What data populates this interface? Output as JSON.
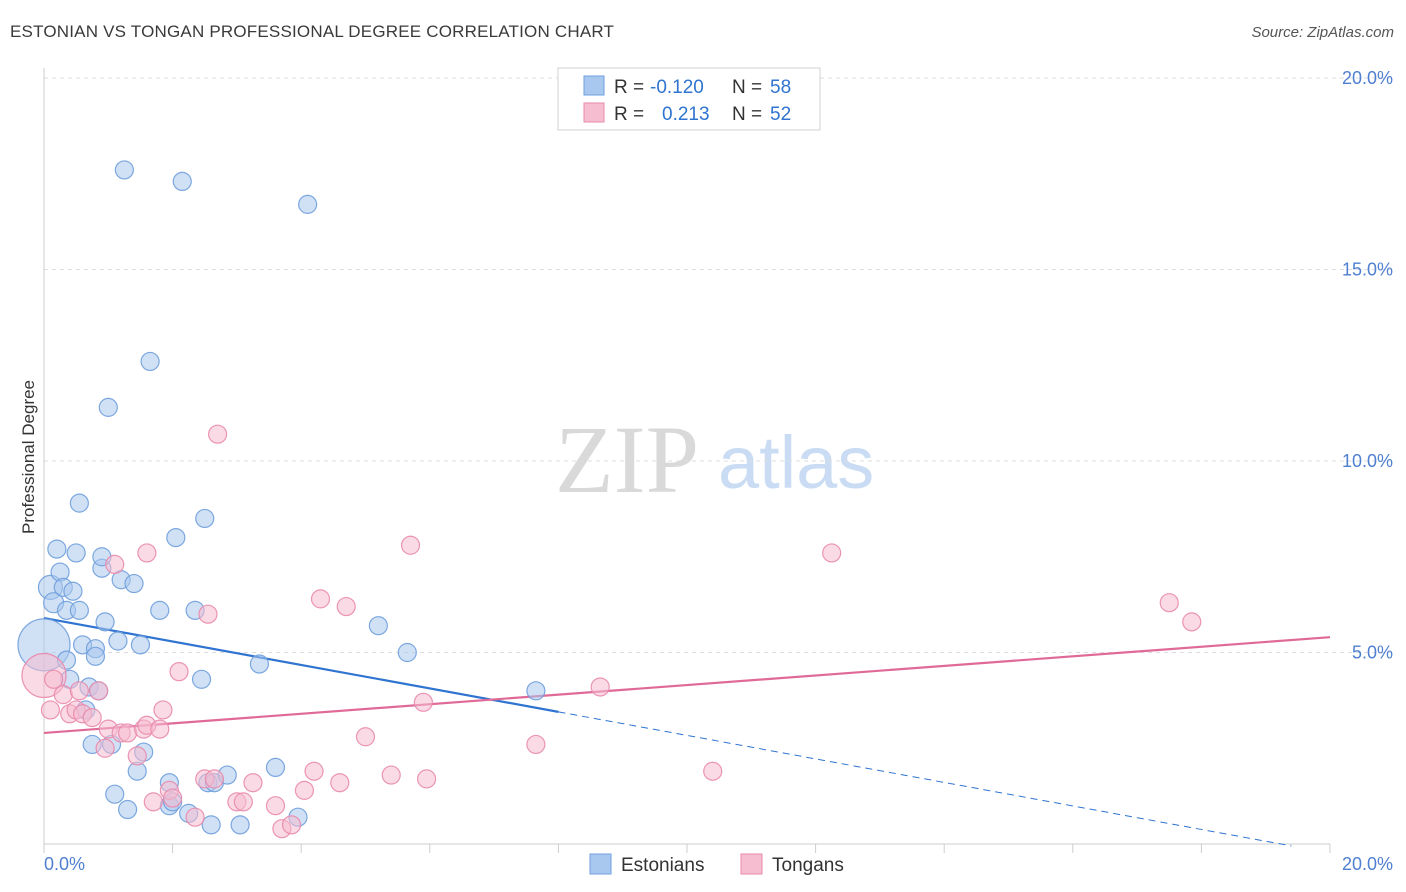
{
  "title": "ESTONIAN VS TONGAN PROFESSIONAL DEGREE CORRELATION CHART",
  "source": "Source: ZipAtlas.com",
  "watermark": {
    "zip": "ZIP",
    "atlas": "atlas"
  },
  "colors": {
    "estonian_fill": "#a9c8ef",
    "estonian_stroke": "#6f9fdc",
    "estonian_line": "#2f74d0",
    "tongan_fill": "#f6bccf",
    "tongan_stroke": "#e98aac",
    "tongan_line": "#e06a97",
    "tick": "#4f7fd0",
    "grid": "#dddddd"
  },
  "legend": {
    "estonian": {
      "r_label": "R =",
      "r_value": "-0.120",
      "n_label": "N =",
      "n_value": "58"
    },
    "tongan": {
      "r_label": "R =",
      "r_value": "0.213",
      "n_label": "N =",
      "n_value": "52"
    }
  },
  "chart_data": {
    "type": "scatter",
    "title": "ESTONIAN VS TONGAN PROFESSIONAL DEGREE CORRELATION CHART",
    "xlabel": "",
    "ylabel": "Professional Degree",
    "xlim": [
      0,
      20
    ],
    "ylim": [
      0,
      20
    ],
    "x_tick_labels": [
      "0.0%",
      "20.0%"
    ],
    "y_ticks": [
      5,
      10,
      15,
      20
    ],
    "y_tick_labels": [
      "5.0%",
      "10.0%",
      "15.0%",
      "20.0%"
    ],
    "grid": true,
    "series": [
      {
        "name": "Estonians",
        "r": -0.12,
        "n": 58,
        "trend": {
          "x0": 0,
          "y0": 5.9,
          "x1": 8.0,
          "y1": 3.45,
          "dash_to_x": 19.4,
          "dash_to_y": -0.05
        },
        "points": [
          [
            0.0,
            5.2,
            26
          ],
          [
            0.1,
            6.7,
            12
          ],
          [
            0.15,
            6.3,
            10
          ],
          [
            0.2,
            7.7,
            9
          ],
          [
            0.25,
            7.1,
            9
          ],
          [
            0.3,
            6.7,
            9
          ],
          [
            0.35,
            6.1,
            9
          ],
          [
            0.35,
            4.8,
            9
          ],
          [
            0.4,
            4.3,
            9
          ],
          [
            0.45,
            6.6,
            9
          ],
          [
            0.5,
            7.6,
            9
          ],
          [
            0.55,
            8.9,
            9
          ],
          [
            0.55,
            6.1,
            9
          ],
          [
            0.6,
            5.2,
            9
          ],
          [
            0.65,
            3.5,
            9
          ],
          [
            0.7,
            4.1,
            9
          ],
          [
            0.75,
            2.6,
            9
          ],
          [
            0.8,
            5.1,
            9
          ],
          [
            0.8,
            4.9,
            9
          ],
          [
            0.85,
            4.0,
            9
          ],
          [
            0.9,
            7.2,
            9
          ],
          [
            0.9,
            7.5,
            9
          ],
          [
            0.95,
            5.8,
            9
          ],
          [
            1.0,
            11.4,
            9
          ],
          [
            1.05,
            2.6,
            9
          ],
          [
            1.1,
            1.3,
            9
          ],
          [
            1.15,
            5.3,
            9
          ],
          [
            1.2,
            6.9,
            9
          ],
          [
            1.25,
            17.6,
            9
          ],
          [
            1.3,
            0.9,
            9
          ],
          [
            1.4,
            6.8,
            9
          ],
          [
            1.45,
            1.9,
            9
          ],
          [
            1.5,
            5.2,
            9
          ],
          [
            1.55,
            2.4,
            9
          ],
          [
            1.65,
            12.6,
            9
          ],
          [
            1.8,
            6.1,
            9
          ],
          [
            1.95,
            1.6,
            9
          ],
          [
            1.95,
            1.0,
            9
          ],
          [
            2.0,
            1.1,
            9
          ],
          [
            2.05,
            8.0,
            9
          ],
          [
            2.15,
            17.3,
            9
          ],
          [
            2.25,
            0.8,
            9
          ],
          [
            2.35,
            6.1,
            9
          ],
          [
            2.45,
            4.3,
            9
          ],
          [
            2.5,
            8.5,
            9
          ],
          [
            2.55,
            1.6,
            9
          ],
          [
            2.6,
            0.5,
            9
          ],
          [
            2.65,
            1.6,
            9
          ],
          [
            2.85,
            1.8,
            9
          ],
          [
            3.05,
            0.5,
            9
          ],
          [
            3.35,
            4.7,
            9
          ],
          [
            3.6,
            2.0,
            9
          ],
          [
            3.95,
            0.7,
            9
          ],
          [
            4.1,
            16.7,
            9
          ],
          [
            5.2,
            5.7,
            9
          ],
          [
            5.65,
            5.0,
            9
          ],
          [
            7.65,
            4.0,
            9
          ]
        ]
      },
      {
        "name": "Tongans",
        "r": 0.213,
        "n": 52,
        "trend": {
          "x0": 0,
          "y0": 2.9,
          "x1": 20,
          "y1": 5.4
        },
        "points": [
          [
            0.0,
            4.4,
            22
          ],
          [
            0.1,
            3.5,
            9
          ],
          [
            0.15,
            4.3,
            9
          ],
          [
            0.3,
            3.9,
            9
          ],
          [
            0.4,
            3.4,
            9
          ],
          [
            0.5,
            3.5,
            9
          ],
          [
            0.55,
            4.0,
            9
          ],
          [
            0.6,
            3.4,
            9
          ],
          [
            0.75,
            3.3,
            9
          ],
          [
            0.85,
            4.0,
            9
          ],
          [
            0.95,
            2.5,
            9
          ],
          [
            1.0,
            3.0,
            9
          ],
          [
            1.1,
            7.3,
            9
          ],
          [
            1.2,
            2.9,
            9
          ],
          [
            1.3,
            2.9,
            9
          ],
          [
            1.45,
            2.3,
            9
          ],
          [
            1.55,
            3.0,
            9
          ],
          [
            1.6,
            3.1,
            9
          ],
          [
            1.6,
            7.6,
            9
          ],
          [
            1.7,
            1.1,
            9
          ],
          [
            1.8,
            3.0,
            9
          ],
          [
            1.85,
            3.5,
            9
          ],
          [
            1.95,
            1.4,
            9
          ],
          [
            2.0,
            1.2,
            9
          ],
          [
            2.1,
            4.5,
            9
          ],
          [
            2.35,
            0.7,
            9
          ],
          [
            2.5,
            1.7,
            9
          ],
          [
            2.55,
            6.0,
            9
          ],
          [
            2.65,
            1.7,
            9
          ],
          [
            2.7,
            10.7,
            9
          ],
          [
            3.0,
            1.1,
            9
          ],
          [
            3.1,
            1.1,
            9
          ],
          [
            3.25,
            1.6,
            9
          ],
          [
            3.6,
            1.0,
            9
          ],
          [
            3.7,
            0.4,
            9
          ],
          [
            3.85,
            0.5,
            9
          ],
          [
            4.05,
            1.4,
            9
          ],
          [
            4.2,
            1.9,
            9
          ],
          [
            4.3,
            6.4,
            9
          ],
          [
            4.6,
            1.6,
            9
          ],
          [
            4.7,
            6.2,
            9
          ],
          [
            5.0,
            2.8,
            9
          ],
          [
            5.4,
            1.8,
            9
          ],
          [
            5.7,
            7.8,
            9
          ],
          [
            5.9,
            3.7,
            9
          ],
          [
            5.95,
            1.7,
            9
          ],
          [
            7.65,
            2.6,
            9
          ],
          [
            8.65,
            4.1,
            9
          ],
          [
            10.4,
            1.9,
            9
          ],
          [
            12.25,
            7.6,
            9
          ],
          [
            17.5,
            6.3,
            9
          ],
          [
            17.85,
            5.8,
            9
          ]
        ]
      }
    ]
  },
  "bottom_legend": {
    "estonians_label": "Estonians",
    "tongans_label": "Tongans"
  }
}
